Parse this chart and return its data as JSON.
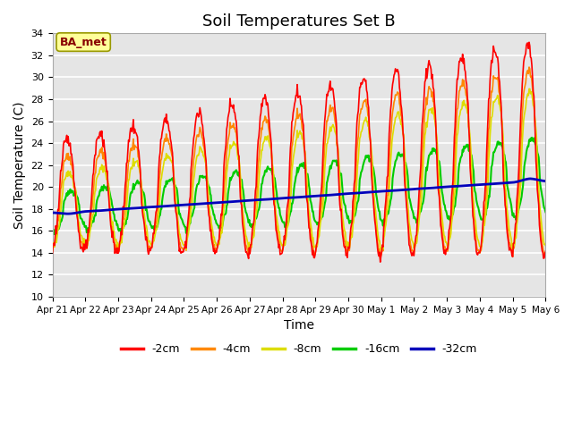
{
  "title": "Soil Temperatures Set B",
  "xlabel": "Time",
  "ylabel": "Soil Temperature (C)",
  "ylim": [
    10,
    34
  ],
  "yticks": [
    10,
    12,
    14,
    16,
    18,
    20,
    22,
    24,
    26,
    28,
    30,
    32,
    34
  ],
  "bg_color": "#e5e5e5",
  "annotation_text": "BA_met",
  "annotation_bg": "#ffff99",
  "annotation_border": "#999900",
  "annotation_text_color": "#880000",
  "series_colors": [
    "#ff0000",
    "#ff8800",
    "#dddd00",
    "#00cc00",
    "#0000bb"
  ],
  "series_labels": [
    "-2cm",
    "-4cm",
    "-8cm",
    "-16cm",
    "-32cm"
  ],
  "x_labels": [
    "Apr 21",
    "Apr 22",
    "Apr 23",
    "Apr 24",
    "Apr 25",
    "Apr 26",
    "Apr 27",
    "Apr 28",
    "Apr 29",
    "Apr 30",
    "May 1",
    "May 2",
    "May 3",
    "May 4",
    "May 5",
    "May 6"
  ],
  "n_days": 15,
  "n_per_day": 48
}
